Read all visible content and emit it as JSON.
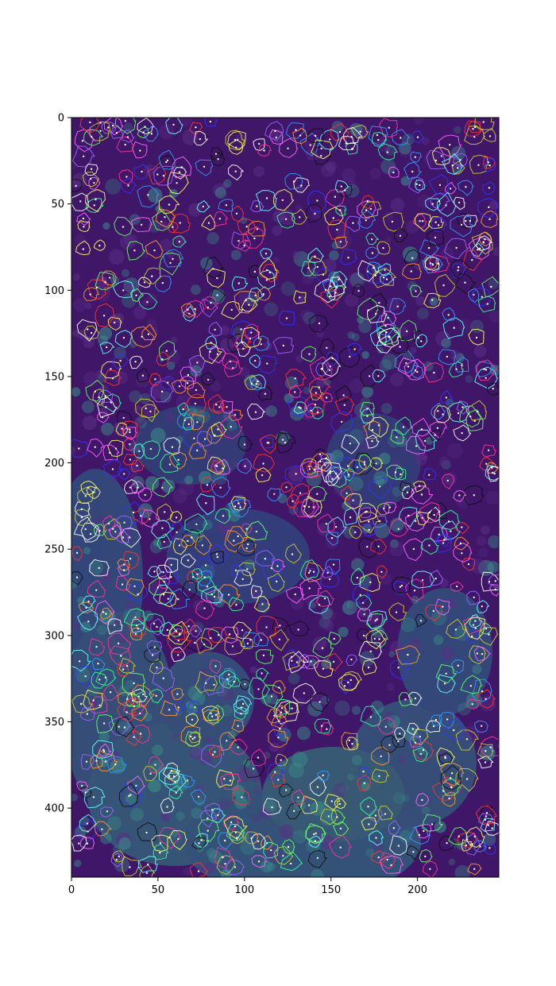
{
  "image_kind": "fluorescence microscopy image with segmented cell contours overlay",
  "colormap": "viridis",
  "contour_palette": [
    "#ffffff",
    "#ffff66",
    "#66ff66",
    "#33ff99",
    "#66ffff",
    "#3399ff",
    "#3333ff",
    "#9966ff",
    "#ff66ff",
    "#ff3399",
    "#ff3333",
    "#ff9933",
    "#cccc33",
    "#111111"
  ],
  "centroid_marker_color": "#ffffff",
  "axes": {
    "x_range": [
      0,
      247
    ],
    "y_range": [
      0,
      440
    ],
    "y_inverted": true,
    "x_ticks": [
      {
        "value": 0,
        "label": "0"
      },
      {
        "value": 50,
        "label": "50"
      },
      {
        "value": 100,
        "label": "100"
      },
      {
        "value": 150,
        "label": "150"
      },
      {
        "value": 200,
        "label": "200"
      }
    ],
    "y_ticks": [
      {
        "value": 0,
        "label": "0"
      },
      {
        "value": 50,
        "label": "50"
      },
      {
        "value": 100,
        "label": "100"
      },
      {
        "value": 150,
        "label": "150"
      },
      {
        "value": 200,
        "label": "200"
      },
      {
        "value": 250,
        "label": "250"
      },
      {
        "value": 300,
        "label": "300"
      },
      {
        "value": 350,
        "label": "350"
      },
      {
        "value": 400,
        "label": "400"
      }
    ]
  }
}
